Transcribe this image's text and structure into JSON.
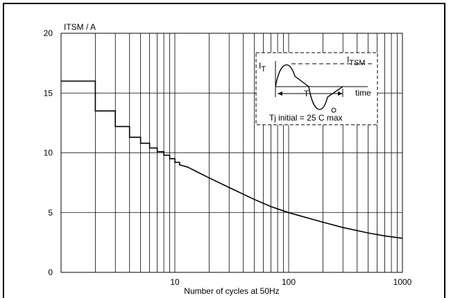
{
  "chart_data": {
    "type": "line",
    "title": "",
    "ylabel": "ITSM / A",
    "xlabel": "Number of cycles at 50Hz",
    "x_scale": "log",
    "xlim": [
      1,
      1000
    ],
    "ylim": [
      0,
      20
    ],
    "grid": true,
    "y_ticks": [
      0,
      5,
      10,
      15,
      20
    ],
    "x_ticks": [
      10,
      100,
      1000
    ],
    "series": [
      {
        "name": "",
        "stepped_until": 11,
        "points": [
          {
            "x": 1,
            "y": 16.0
          },
          {
            "x": 2,
            "y": 13.5
          },
          {
            "x": 3,
            "y": 12.2
          },
          {
            "x": 4,
            "y": 11.3
          },
          {
            "x": 5,
            "y": 10.8
          },
          {
            "x": 6,
            "y": 10.4
          },
          {
            "x": 7,
            "y": 10.1
          },
          {
            "x": 8,
            "y": 9.8
          },
          {
            "x": 9,
            "y": 9.5
          },
          {
            "x": 10,
            "y": 9.2
          },
          {
            "x": 11,
            "y": 9.0
          },
          {
            "x": 13,
            "y": 8.8
          },
          {
            "x": 15,
            "y": 8.5
          },
          {
            "x": 20,
            "y": 7.9
          },
          {
            "x": 30,
            "y": 7.1
          },
          {
            "x": 50,
            "y": 6.1
          },
          {
            "x": 70,
            "y": 5.5
          },
          {
            "x": 100,
            "y": 5.0
          },
          {
            "x": 200,
            "y": 4.2
          },
          {
            "x": 300,
            "y": 3.75
          },
          {
            "x": 500,
            "y": 3.3
          },
          {
            "x": 700,
            "y": 3.05
          },
          {
            "x": 1000,
            "y": 2.85
          }
        ]
      }
    ],
    "inset": {
      "label_it_main": "I",
      "label_it_sub": "T",
      "label_itsm_main": "I",
      "label_itsm_sub": "TSM",
      "label_period": "T",
      "label_time": "time",
      "note_main": "T",
      "note_sub": "j",
      "note_rest": " initial = 25 C max"
    }
  }
}
